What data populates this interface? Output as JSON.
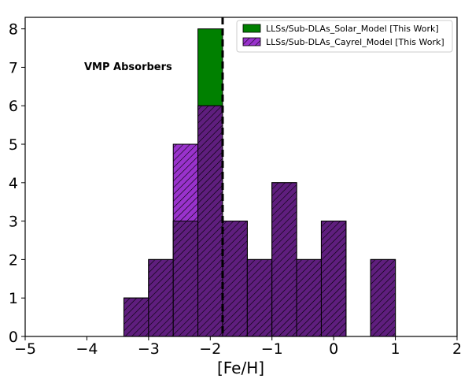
{
  "chart_data": {
    "type": "bar",
    "xlabel": "[Fe/H]",
    "ylabel": "",
    "xlim": [
      -5,
      2
    ],
    "ylim": [
      0,
      8.3
    ],
    "x_ticks": [
      -5,
      -4,
      -3,
      -2,
      -1,
      0,
      1,
      2
    ],
    "x_tick_labels": [
      "−5",
      "−4",
      "−3",
      "−2",
      "−1",
      "0",
      "1",
      "2"
    ],
    "y_ticks": [
      0,
      1,
      2,
      3,
      4,
      5,
      6,
      7,
      8
    ],
    "y_tick_labels": [
      "0",
      "1",
      "2",
      "3",
      "4",
      "5",
      "6",
      "7",
      "8"
    ],
    "bin_edges": [
      -3.4,
      -3.0,
      -2.6,
      -2.2,
      -1.8,
      -1.4,
      -1.0,
      -0.6,
      -0.2,
      0.2,
      0.6,
      1.0
    ],
    "series": [
      {
        "name": "LLSs/Sub-DLAs_Solar_Model [This Work]",
        "color": "#008000",
        "hatch": false,
        "values": [
          1,
          2,
          3,
          8,
          3,
          2,
          4,
          2,
          3,
          0,
          2
        ]
      },
      {
        "name": "LLSs/Sub-DLAs_Cayrel_Model [This Work]",
        "color": "#9932CC",
        "hatch": true,
        "values": [
          1,
          2,
          5,
          6,
          3,
          2,
          4,
          2,
          3,
          0,
          2
        ]
      }
    ],
    "overlap_color": "#5F1E7E",
    "vline": {
      "x": -1.8,
      "style": "dashed",
      "color": "#000000"
    },
    "annotation": "VMP Absorbers",
    "legend_position": "top-right",
    "grid": false
  }
}
